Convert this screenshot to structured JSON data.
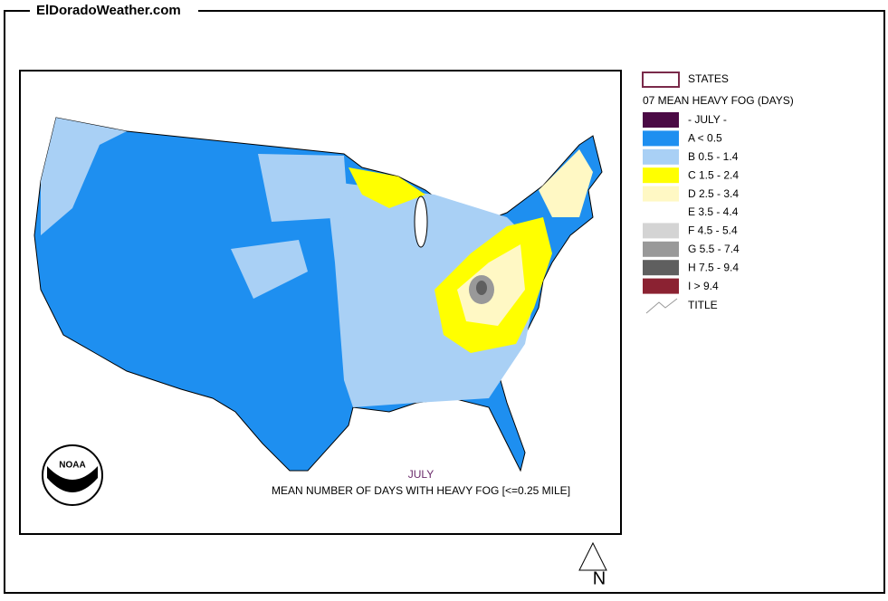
{
  "header": {
    "site": "ElDoradoWeather.com"
  },
  "legend": {
    "states": "STATES",
    "title": "07 MEAN HEAVY FOG (DAYS)",
    "items": [
      {
        "label": "- JULY -",
        "color": "#4b0a45"
      },
      {
        "label": "A < 0.5",
        "color": "#1e8ff0"
      },
      {
        "label": "B 0.5 - 1.4",
        "color": "#a9d0f5"
      },
      {
        "label": "C 1.5 - 2.4",
        "color": "#ffff00"
      },
      {
        "label": "D 2.5 - 3.4",
        "color": "#fff8c4"
      },
      {
        "label": "E 3.5 - 4.4",
        "color": "#ffffff"
      },
      {
        "label": "F 4.5 - 5.4",
        "color": "#d4d4d4"
      },
      {
        "label": "G 5.5 - 7.4",
        "color": "#999999"
      },
      {
        "label": "H 7.5 - 9.4",
        "color": "#5f5f5f"
      },
      {
        "label": "I > 9.4",
        "color": "#8b2232"
      }
    ],
    "title_symbol": "TITLE"
  },
  "map": {
    "month": "JULY",
    "caption": "MEAN NUMBER OF DAYS WITH HEAVY FOG [<=0.25 MILE]",
    "logo": "NOAA"
  },
  "north": "N"
}
